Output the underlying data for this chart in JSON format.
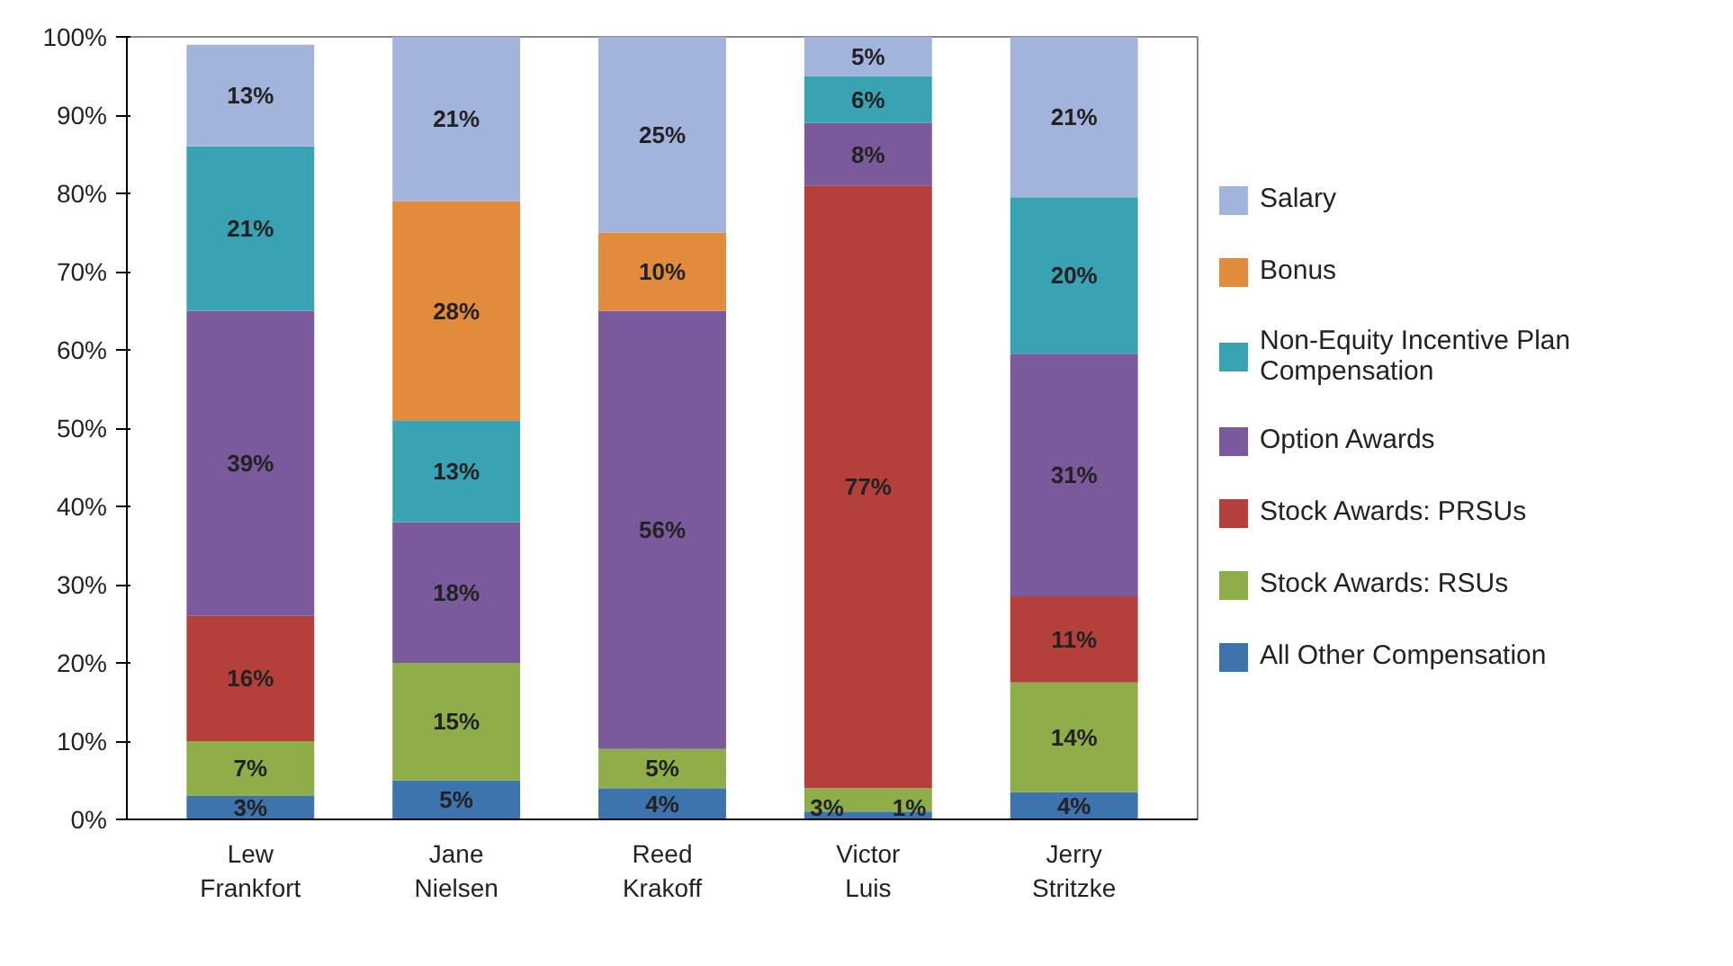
{
  "chart_data": {
    "type": "bar",
    "stacked": true,
    "categories": [
      "Lew Frankfort",
      "Jane Nielsen",
      "Reed Krakoff",
      "Victor Luis",
      "Jerry Stritzke"
    ],
    "series": [
      {
        "name": "All Other Compensation",
        "color": "#3d74ad",
        "values": [
          3,
          5,
          4,
          1,
          3.5
        ],
        "value_labels": [
          "3%",
          "5%",
          "4%",
          "1%",
          "4%"
        ]
      },
      {
        "name": "Stock Awards: RSUs",
        "color": "#8fae4a",
        "values": [
          7,
          15,
          5,
          3,
          14
        ],
        "value_labels": [
          "7%",
          "15%",
          "5%",
          "3%",
          "14%"
        ]
      },
      {
        "name": "Stock Awards: PRSUs",
        "color": "#b5403b",
        "values": [
          16,
          0,
          0,
          77,
          11
        ],
        "value_labels": [
          "16%",
          null,
          null,
          "77%",
          "11%"
        ]
      },
      {
        "name": "Option Awards",
        "color": "#7b5a9c",
        "values": [
          39,
          18,
          56,
          8,
          31
        ],
        "value_labels": [
          "39%",
          "18%",
          "56%",
          "8%",
          "31%"
        ]
      },
      {
        "name": "Non-Equity Incentive Plan Compensation",
        "color": "#3aa3b3",
        "values": [
          21,
          13,
          0,
          6,
          20
        ],
        "value_labels": [
          "21%",
          "13%",
          null,
          "6%",
          "20%"
        ]
      },
      {
        "name": "Bonus",
        "color": "#e38b3c",
        "values": [
          0,
          28,
          10,
          0,
          0
        ],
        "value_labels": [
          null,
          "28%",
          "10%",
          null,
          null
        ]
      },
      {
        "name": "Salary",
        "color": "#a3b4dc",
        "values": [
          13,
          21,
          25,
          5,
          20.5
        ],
        "value_labels": [
          "13%",
          "21%",
          "25%",
          "5%",
          "21%"
        ]
      }
    ],
    "ylim": [
      0,
      100
    ],
    "yticks": [
      {
        "value": 0,
        "label": "0%"
      },
      {
        "value": 10,
        "label": "10%"
      },
      {
        "value": 20,
        "label": "20%"
      },
      {
        "value": 30,
        "label": "30%"
      },
      {
        "value": 40,
        "label": "40%"
      },
      {
        "value": 50,
        "label": "50%"
      },
      {
        "value": 60,
        "label": "60%"
      },
      {
        "value": 70,
        "label": "70%"
      },
      {
        "value": 80,
        "label": "80%"
      },
      {
        "value": 90,
        "label": "90%"
      },
      {
        "value": 100,
        "label": "100%"
      }
    ],
    "grid": false,
    "legend": "right"
  }
}
